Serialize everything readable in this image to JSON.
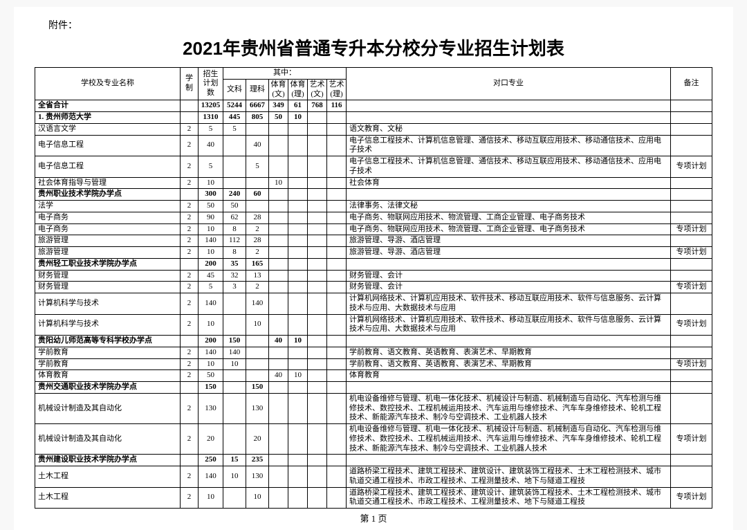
{
  "attachment_label": "附件：",
  "title": "2021年贵州省普通专升本分校分专业招生计划表",
  "page_number": "第 1 页",
  "header": {
    "name": "学校及专业名称",
    "xuezhi": "学制",
    "plan": "招生计划数",
    "qizhong": "其中：",
    "wk": "文科",
    "lk": "理科",
    "ty_w": "体育(文)",
    "ty_l": "体育(理)",
    "ys_w": "艺术(文)",
    "ys_l": "艺术(理)",
    "duikou": "对口专业",
    "beizhu": "备注"
  },
  "rows": [
    {
      "bold": true,
      "name": "全省合计",
      "xz": "",
      "plan": "13205",
      "wk": "5244",
      "lk": "6667",
      "tyw": "349",
      "tyl": "61",
      "ysw": "768",
      "ysl": "116",
      "dk": "",
      "bz": ""
    },
    {
      "bold": true,
      "name": "1. 贵州师范大学",
      "xz": "",
      "plan": "1310",
      "wk": "445",
      "lk": "805",
      "tyw": "50",
      "tyl": "10",
      "ysw": "",
      "ysl": "",
      "dk": "",
      "bz": ""
    },
    {
      "name": "汉语言文学",
      "xz": "2",
      "plan": "5",
      "wk": "5",
      "lk": "",
      "tyw": "",
      "tyl": "",
      "ysw": "",
      "ysl": "",
      "dk": "语文教育、文秘",
      "bz": ""
    },
    {
      "name": "电子信息工程",
      "xz": "2",
      "plan": "40",
      "wk": "",
      "lk": "40",
      "tyw": "",
      "tyl": "",
      "ysw": "",
      "ysl": "",
      "dk": "电子信息工程技术、计算机信息管理、通信技术、移动互联应用技术、移动通信技术、应用电子技术",
      "bz": ""
    },
    {
      "name": "电子信息工程",
      "xz": "2",
      "plan": "5",
      "wk": "",
      "lk": "5",
      "tyw": "",
      "tyl": "",
      "ysw": "",
      "ysl": "",
      "dk": "电子信息工程技术、计算机信息管理、通信技术、移动互联应用技术、移动通信技术、应用电子技术",
      "bz": "专项计划"
    },
    {
      "name": "社会体育指导与管理",
      "xz": "2",
      "plan": "10",
      "wk": "",
      "lk": "",
      "tyw": "10",
      "tyl": "",
      "ysw": "",
      "ysl": "",
      "dk": "社会体育",
      "bz": ""
    },
    {
      "bold": true,
      "name": "贵州职业技术学院办学点",
      "xz": "",
      "plan": "300",
      "wk": "240",
      "lk": "60",
      "tyw": "",
      "tyl": "",
      "ysw": "",
      "ysl": "",
      "dk": "",
      "bz": ""
    },
    {
      "name": "法学",
      "xz": "2",
      "plan": "50",
      "wk": "50",
      "lk": "",
      "tyw": "",
      "tyl": "",
      "ysw": "",
      "ysl": "",
      "dk": "法律事务、法律文秘",
      "bz": ""
    },
    {
      "name": "电子商务",
      "xz": "2",
      "plan": "90",
      "wk": "62",
      "lk": "28",
      "tyw": "",
      "tyl": "",
      "ysw": "",
      "ysl": "",
      "dk": "电子商务、物联网应用技术、物流管理、工商企业管理、电子商务技术",
      "bz": ""
    },
    {
      "name": "电子商务",
      "xz": "2",
      "plan": "10",
      "wk": "8",
      "lk": "2",
      "tyw": "",
      "tyl": "",
      "ysw": "",
      "ysl": "",
      "dk": "电子商务、物联网应用技术、物流管理、工商企业管理、电子商务技术",
      "bz": "专项计划"
    },
    {
      "name": "旅游管理",
      "xz": "2",
      "plan": "140",
      "wk": "112",
      "lk": "28",
      "tyw": "",
      "tyl": "",
      "ysw": "",
      "ysl": "",
      "dk": "旅游管理、导游、酒店管理",
      "bz": ""
    },
    {
      "name": "旅游管理",
      "xz": "2",
      "plan": "10",
      "wk": "8",
      "lk": "2",
      "tyw": "",
      "tyl": "",
      "ysw": "",
      "ysl": "",
      "dk": "旅游管理、导游、酒店管理",
      "bz": "专项计划"
    },
    {
      "bold": true,
      "name": "贵州轻工职业技术学院办学点",
      "xz": "",
      "plan": "200",
      "wk": "35",
      "lk": "165",
      "tyw": "",
      "tyl": "",
      "ysw": "",
      "ysl": "",
      "dk": "",
      "bz": ""
    },
    {
      "name": "财务管理",
      "xz": "2",
      "plan": "45",
      "wk": "32",
      "lk": "13",
      "tyw": "",
      "tyl": "",
      "ysw": "",
      "ysl": "",
      "dk": "财务管理、会计",
      "bz": ""
    },
    {
      "name": "财务管理",
      "xz": "2",
      "plan": "5",
      "wk": "3",
      "lk": "2",
      "tyw": "",
      "tyl": "",
      "ysw": "",
      "ysl": "",
      "dk": "财务管理、会计",
      "bz": "专项计划"
    },
    {
      "name": "计算机科学与技术",
      "xz": "2",
      "plan": "140",
      "wk": "",
      "lk": "140",
      "tyw": "",
      "tyl": "",
      "ysw": "",
      "ysl": "",
      "dk": "计算机网络技术、计算机应用技术、软件技术、移动互联应用技术、软件与信息服务、云计算技术与应用、大数据技术与应用",
      "bz": ""
    },
    {
      "name": "计算机科学与技术",
      "xz": "2",
      "plan": "10",
      "wk": "",
      "lk": "10",
      "tyw": "",
      "tyl": "",
      "ysw": "",
      "ysl": "",
      "dk": "计算机网络技术、计算机应用技术、软件技术、移动互联应用技术、软件与信息服务、云计算技术与应用、大数据技术与应用",
      "bz": "专项计划"
    },
    {
      "bold": true,
      "name": "贵阳幼儿师范高等专科学校办学点",
      "xz": "",
      "plan": "200",
      "wk": "150",
      "lk": "",
      "tyw": "40",
      "tyl": "10",
      "ysw": "",
      "ysl": "",
      "dk": "",
      "bz": ""
    },
    {
      "name": "学前教育",
      "xz": "2",
      "plan": "140",
      "wk": "140",
      "lk": "",
      "tyw": "",
      "tyl": "",
      "ysw": "",
      "ysl": "",
      "dk": "学前教育、语文教育、英语教育、表演艺术、早期教育",
      "bz": ""
    },
    {
      "name": "学前教育",
      "xz": "2",
      "plan": "10",
      "wk": "10",
      "lk": "",
      "tyw": "",
      "tyl": "",
      "ysw": "",
      "ysl": "",
      "dk": "学前教育、语文教育、英语教育、表演艺术、早期教育",
      "bz": "专项计划"
    },
    {
      "name": "体育教育",
      "xz": "2",
      "plan": "50",
      "wk": "",
      "lk": "",
      "tyw": "40",
      "tyl": "10",
      "ysw": "",
      "ysl": "",
      "dk": "体育教育",
      "bz": ""
    },
    {
      "bold": true,
      "name": "贵州交通职业技术学院办学点",
      "xz": "",
      "plan": "150",
      "wk": "",
      "lk": "150",
      "tyw": "",
      "tyl": "",
      "ysw": "",
      "ysl": "",
      "dk": "",
      "bz": ""
    },
    {
      "name": "机械设计制造及其自动化",
      "xz": "2",
      "plan": "130",
      "wk": "",
      "lk": "130",
      "tyw": "",
      "tyl": "",
      "ysw": "",
      "ysl": "",
      "dk": "机电设备维修与管理、机电一体化技术、机械设计与制造、机械制造与自动化、汽车检测与维修技术、数控技术、工程机械运用技术、汽车运用与维修技术、汽车车身维修技术、轮机工程技术、新能源汽车技术、制冷与空调技术、工业机器人技术",
      "bz": ""
    },
    {
      "name": "机械设计制造及其自动化",
      "xz": "2",
      "plan": "20",
      "wk": "",
      "lk": "20",
      "tyw": "",
      "tyl": "",
      "ysw": "",
      "ysl": "",
      "dk": "机电设备维修与管理、机电一体化技术、机械设计与制造、机械制造与自动化、汽车检测与维修技术、数控技术、工程机械运用技术、汽车运用与维修技术、汽车车身维修技术、轮机工程技术、新能源汽车技术、制冷与空调技术、工业机器人技术",
      "bz": "专项计划"
    },
    {
      "bold": true,
      "name": "贵州建设职业技术学院办学点",
      "xz": "",
      "plan": "250",
      "wk": "15",
      "lk": "235",
      "tyw": "",
      "tyl": "",
      "ysw": "",
      "ysl": "",
      "dk": "",
      "bz": ""
    },
    {
      "name": "土木工程",
      "xz": "2",
      "plan": "140",
      "wk": "10",
      "lk": "130",
      "tyw": "",
      "tyl": "",
      "ysw": "",
      "ysl": "",
      "dk": "道路桥梁工程技术、建筑工程技术、建筑设计、建筑装饰工程技术、土木工程检测技术、城市轨道交通工程技术、市政工程技术、工程测量技术、地下与隧道工程技",
      "bz": ""
    },
    {
      "name": "土木工程",
      "xz": "2",
      "plan": "10",
      "wk": "",
      "lk": "10",
      "tyw": "",
      "tyl": "",
      "ysw": "",
      "ysl": "",
      "dk": "道路桥梁工程技术、建筑工程技术、建筑设计、建筑装饰工程技术、土木工程检测技术、城市轨道交通工程技术、市政工程技术、工程测量技术、地下与隧道工程技",
      "bz": "专项计划"
    }
  ]
}
